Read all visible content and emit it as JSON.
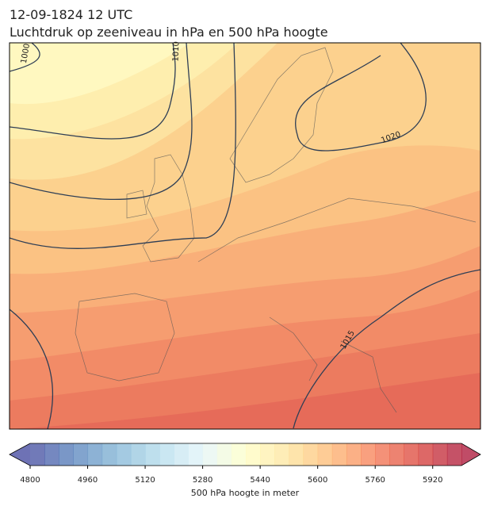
{
  "title": "12-09-1824 12 UTC",
  "subtitle": "Luchtdruk op zeeniveau in hPa en 500 hPa hoogte",
  "contour_labels": [
    "1000",
    "1010",
    "1020",
    "1015"
  ],
  "colorbar": {
    "label": "500 hPa hoogte in meter",
    "lim": [
      4800,
      6000
    ],
    "step": 40,
    "ticks": [
      4800,
      4960,
      5120,
      5280,
      5440,
      5600,
      5760,
      5920
    ]
  }
}
